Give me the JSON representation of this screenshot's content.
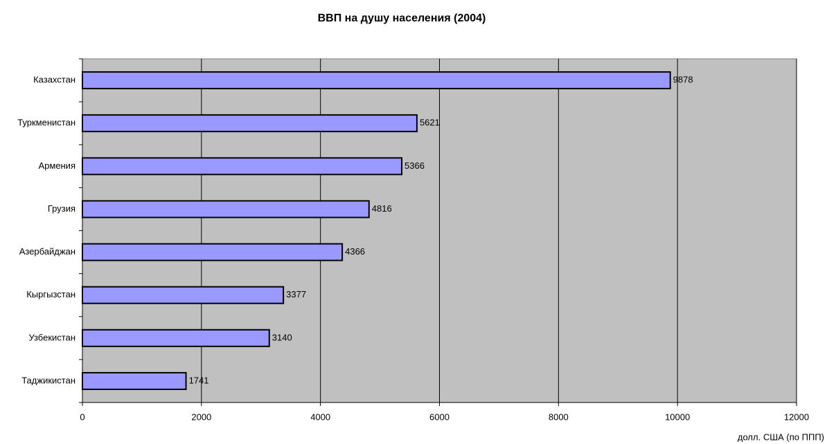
{
  "chart_data": {
    "type": "bar",
    "orientation": "horizontal",
    "title": "ВВП на душу населения (2004)",
    "x_label": "долл. США (по ППП)",
    "categories": [
      "Казахстан",
      "Туркменистан",
      "Армения",
      "Грузия",
      "Азербайджан",
      "Кыргызстан",
      "Узбекистан",
      "Таджикистан"
    ],
    "values": [
      9878,
      5621,
      5366,
      4816,
      4366,
      3377,
      3140,
      1741
    ],
    "color": "#9999ff",
    "background": "#c0c0c0",
    "xlim": [
      0,
      12000
    ],
    "xticks": [
      0,
      2000,
      4000,
      6000,
      8000,
      10000,
      12000
    ],
    "grid": true
  }
}
